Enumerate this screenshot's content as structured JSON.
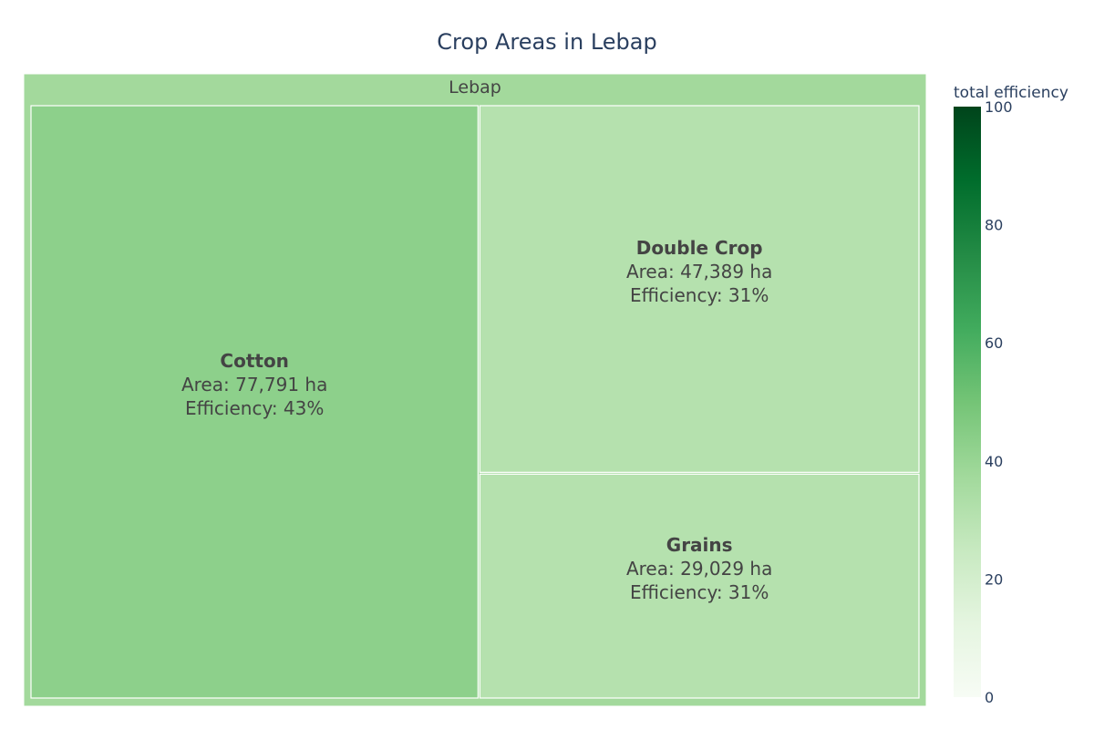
{
  "chart_data": {
    "type": "treemap",
    "title": "Crop Areas in Lebap",
    "root": {
      "name": "Lebap"
    },
    "items": [
      {
        "name": "Cotton",
        "area": 77791,
        "area_label": "Area: 77,791 ha",
        "efficiency": 43,
        "efficiency_label": "Efficiency: 43%"
      },
      {
        "name": "Double Crop",
        "area": 47389,
        "area_label": "Area: 47,389 ha",
        "efficiency": 31,
        "efficiency_label": "Efficiency: 31%"
      },
      {
        "name": "Grains",
        "area": 29029,
        "area_label": "Area: 29,029 ha",
        "efficiency": 31,
        "efficiency_label": "Efficiency: 31%"
      }
    ],
    "colorbar": {
      "title": "total efficiency",
      "range": [
        0,
        100
      ],
      "ticks": [
        "0",
        "20",
        "40",
        "60",
        "80",
        "100"
      ],
      "colorscale": "Greens"
    }
  }
}
